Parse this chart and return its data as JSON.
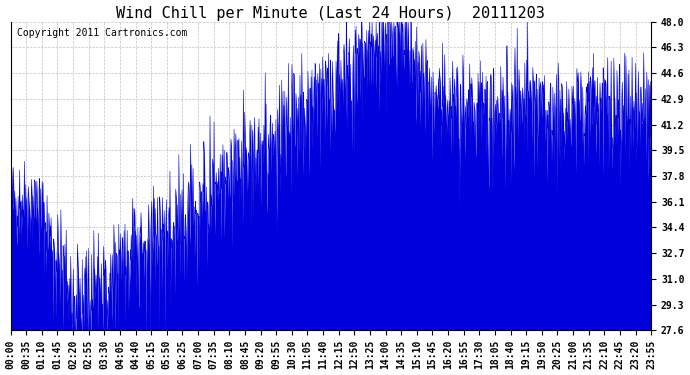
{
  "title": "Wind Chill per Minute (Last 24 Hours)  20111203",
  "copyright_text": "Copyright 2011 Cartronics.com",
  "y_min": 27.6,
  "y_max": 48.0,
  "y_ticks": [
    27.6,
    29.3,
    31.0,
    32.7,
    34.4,
    36.1,
    37.8,
    39.5,
    41.2,
    42.9,
    44.6,
    46.3,
    48.0
  ],
  "line_color": "#0000dd",
  "fill_color": "#0000dd",
  "background_color": "#ffffff",
  "plot_bg_color": "#ffffff",
  "grid_color": "#bbbbbb",
  "title_fontsize": 11,
  "copyright_fontsize": 7,
  "tick_label_fontsize": 7,
  "x_tick_labels": [
    "00:00",
    "00:35",
    "01:10",
    "01:45",
    "02:20",
    "02:55",
    "03:30",
    "04:05",
    "04:40",
    "05:15",
    "05:50",
    "06:25",
    "07:00",
    "07:35",
    "08:10",
    "08:45",
    "09:20",
    "09:55",
    "10:30",
    "11:05",
    "11:40",
    "12:15",
    "12:50",
    "13:25",
    "14:00",
    "14:35",
    "15:10",
    "15:45",
    "16:20",
    "16:55",
    "17:30",
    "18:05",
    "18:40",
    "19:15",
    "19:50",
    "20:25",
    "21:00",
    "21:35",
    "22:10",
    "22:45",
    "23:20",
    "23:55"
  ],
  "seed": 42
}
